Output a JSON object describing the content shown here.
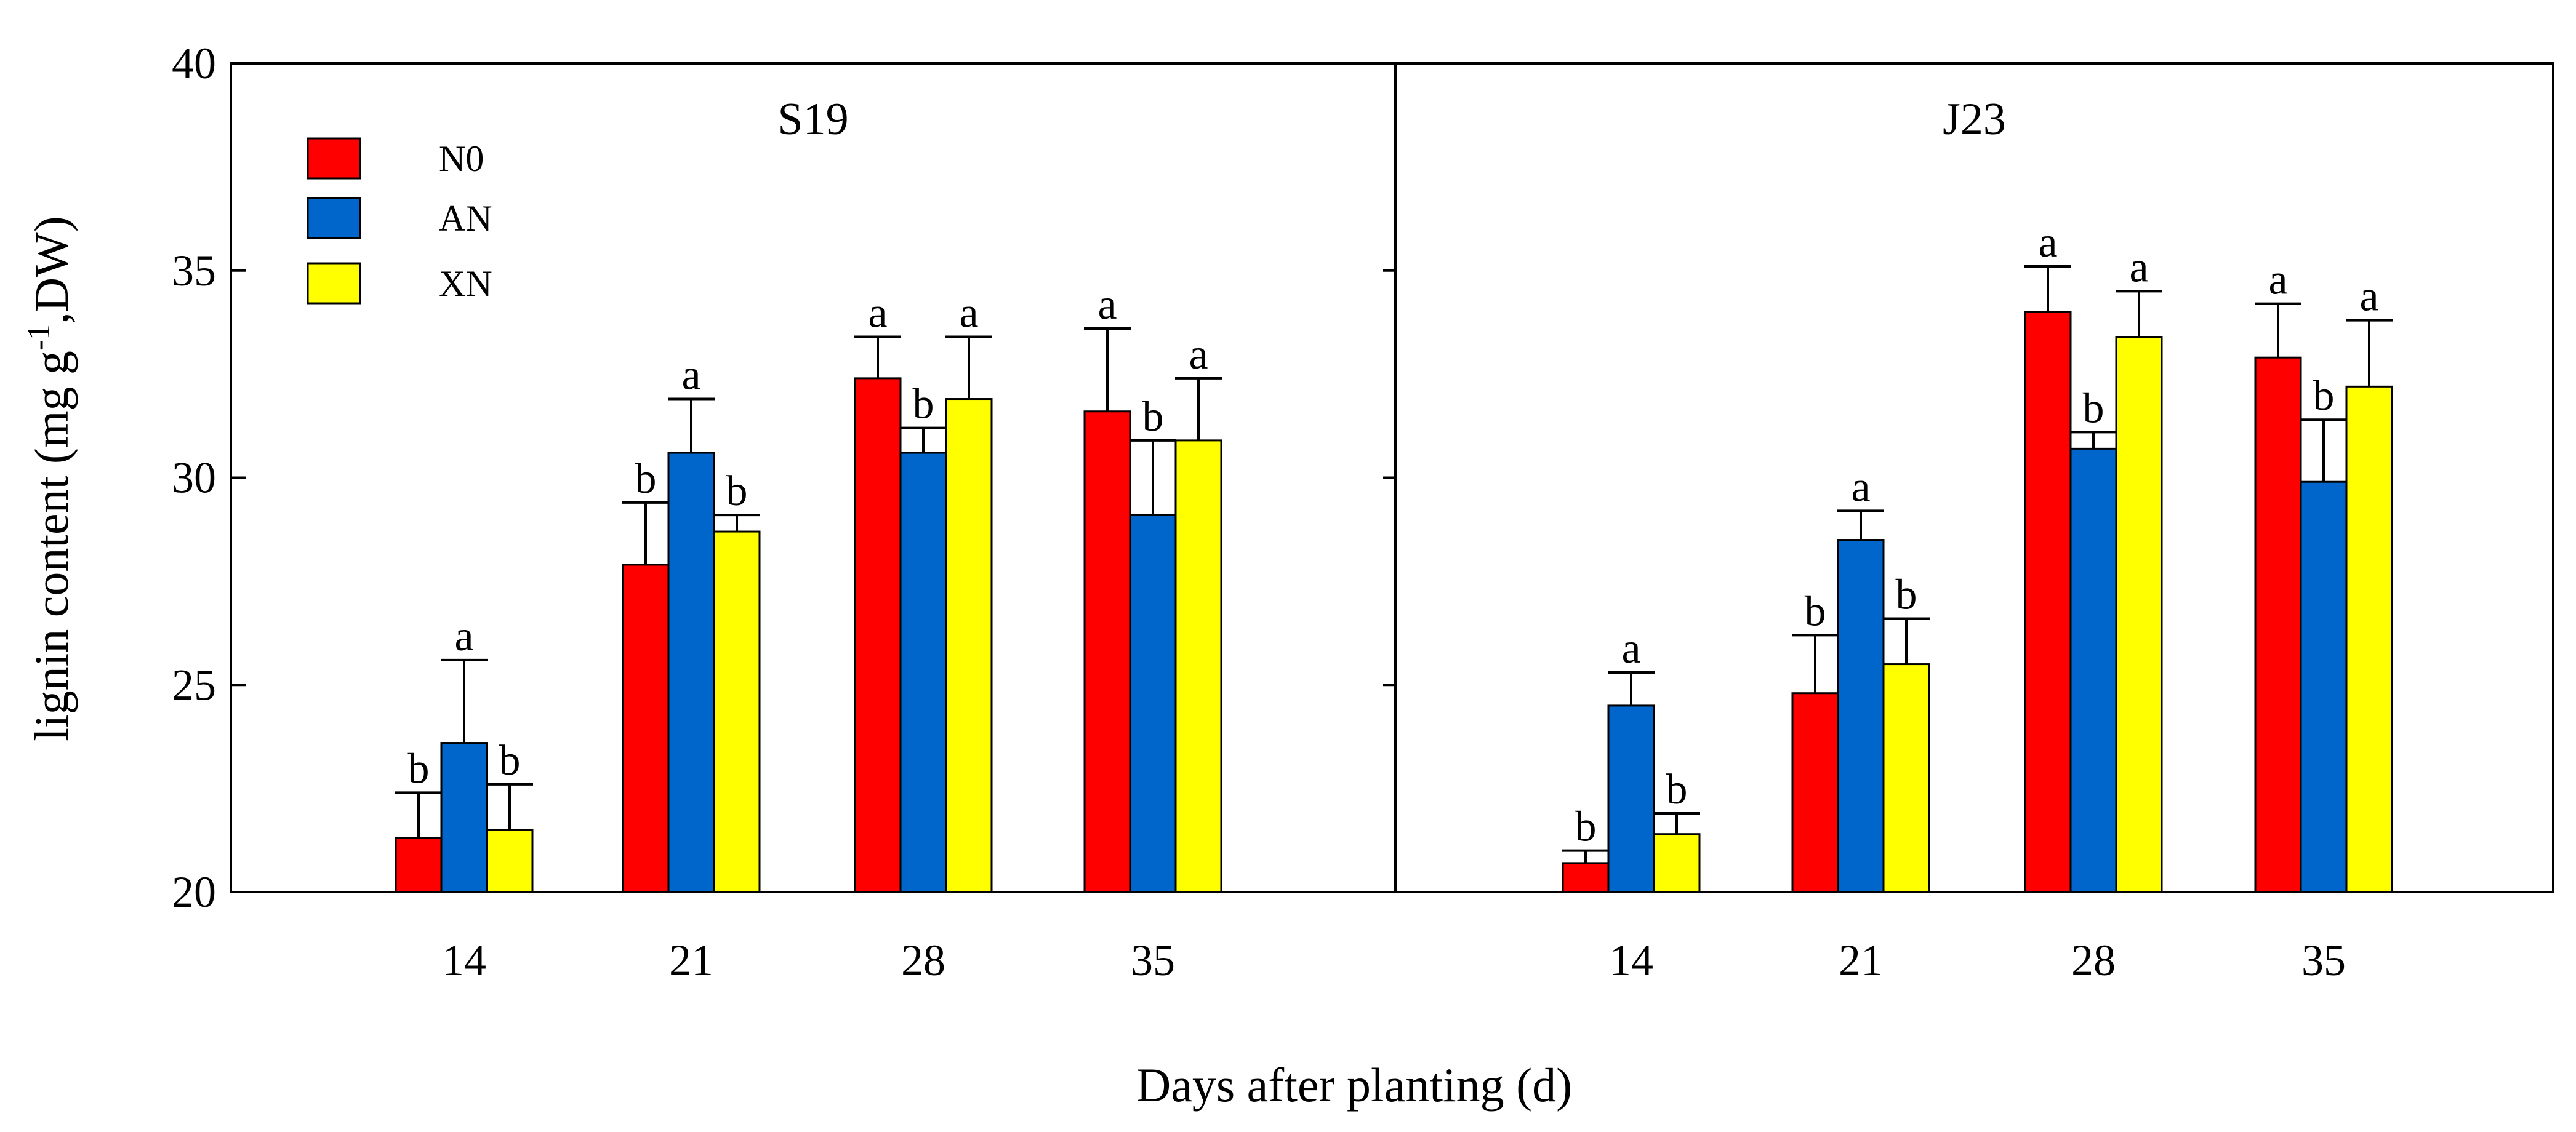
{
  "chart_data": {
    "type": "bar",
    "xlabel": "Days after planting (d)",
    "ylabel": {
      "main": "lignin content (mg g",
      "superscript": "-1",
      "tail": ",DW)"
    },
    "ylim": [
      20,
      40
    ],
    "yticks": [
      "20",
      "25",
      "30",
      "35",
      "40"
    ],
    "categories": [
      "14",
      "21",
      "28",
      "35"
    ],
    "legend": {
      "position": "top-left",
      "entries": [
        {
          "name": "N0",
          "color": "#ff0000"
        },
        {
          "name": "AN",
          "color": "#0066cc"
        },
        {
          "name": "XN",
          "color": "#ffff00"
        }
      ]
    },
    "panels": [
      {
        "title": "S19",
        "series": [
          {
            "name": "N0",
            "values": [
              21.3,
              27.9,
              32.4,
              31.6
            ],
            "errors": [
              1.1,
              1.5,
              1.0,
              2.0
            ],
            "letters": [
              "b",
              "b",
              "a",
              "a"
            ]
          },
          {
            "name": "AN",
            "values": [
              23.6,
              30.6,
              30.6,
              29.1
            ],
            "errors": [
              2.0,
              1.3,
              0.6,
              1.8
            ],
            "letters": [
              "a",
              "a",
              "b",
              "b"
            ]
          },
          {
            "name": "XN",
            "values": [
              21.5,
              28.7,
              31.9,
              30.9
            ],
            "errors": [
              1.1,
              0.4,
              1.5,
              1.5
            ],
            "letters": [
              "b",
              "b",
              "a",
              "a"
            ]
          }
        ]
      },
      {
        "title": "J23",
        "series": [
          {
            "name": "N0",
            "values": [
              20.7,
              24.8,
              34.0,
              32.9
            ],
            "errors": [
              0.3,
              1.4,
              1.1,
              1.3
            ],
            "letters": [
              "b",
              "b",
              "a",
              "a"
            ]
          },
          {
            "name": "AN",
            "values": [
              24.5,
              28.5,
              30.7,
              29.9
            ],
            "errors": [
              0.8,
              0.7,
              0.4,
              1.5
            ],
            "letters": [
              "a",
              "a",
              "b",
              "b"
            ]
          },
          {
            "name": "XN",
            "values": [
              21.4,
              25.5,
              33.4,
              32.2
            ],
            "errors": [
              0.5,
              1.1,
              1.1,
              1.6
            ],
            "letters": [
              "b",
              "b",
              "a",
              "a"
            ]
          }
        ]
      }
    ]
  }
}
